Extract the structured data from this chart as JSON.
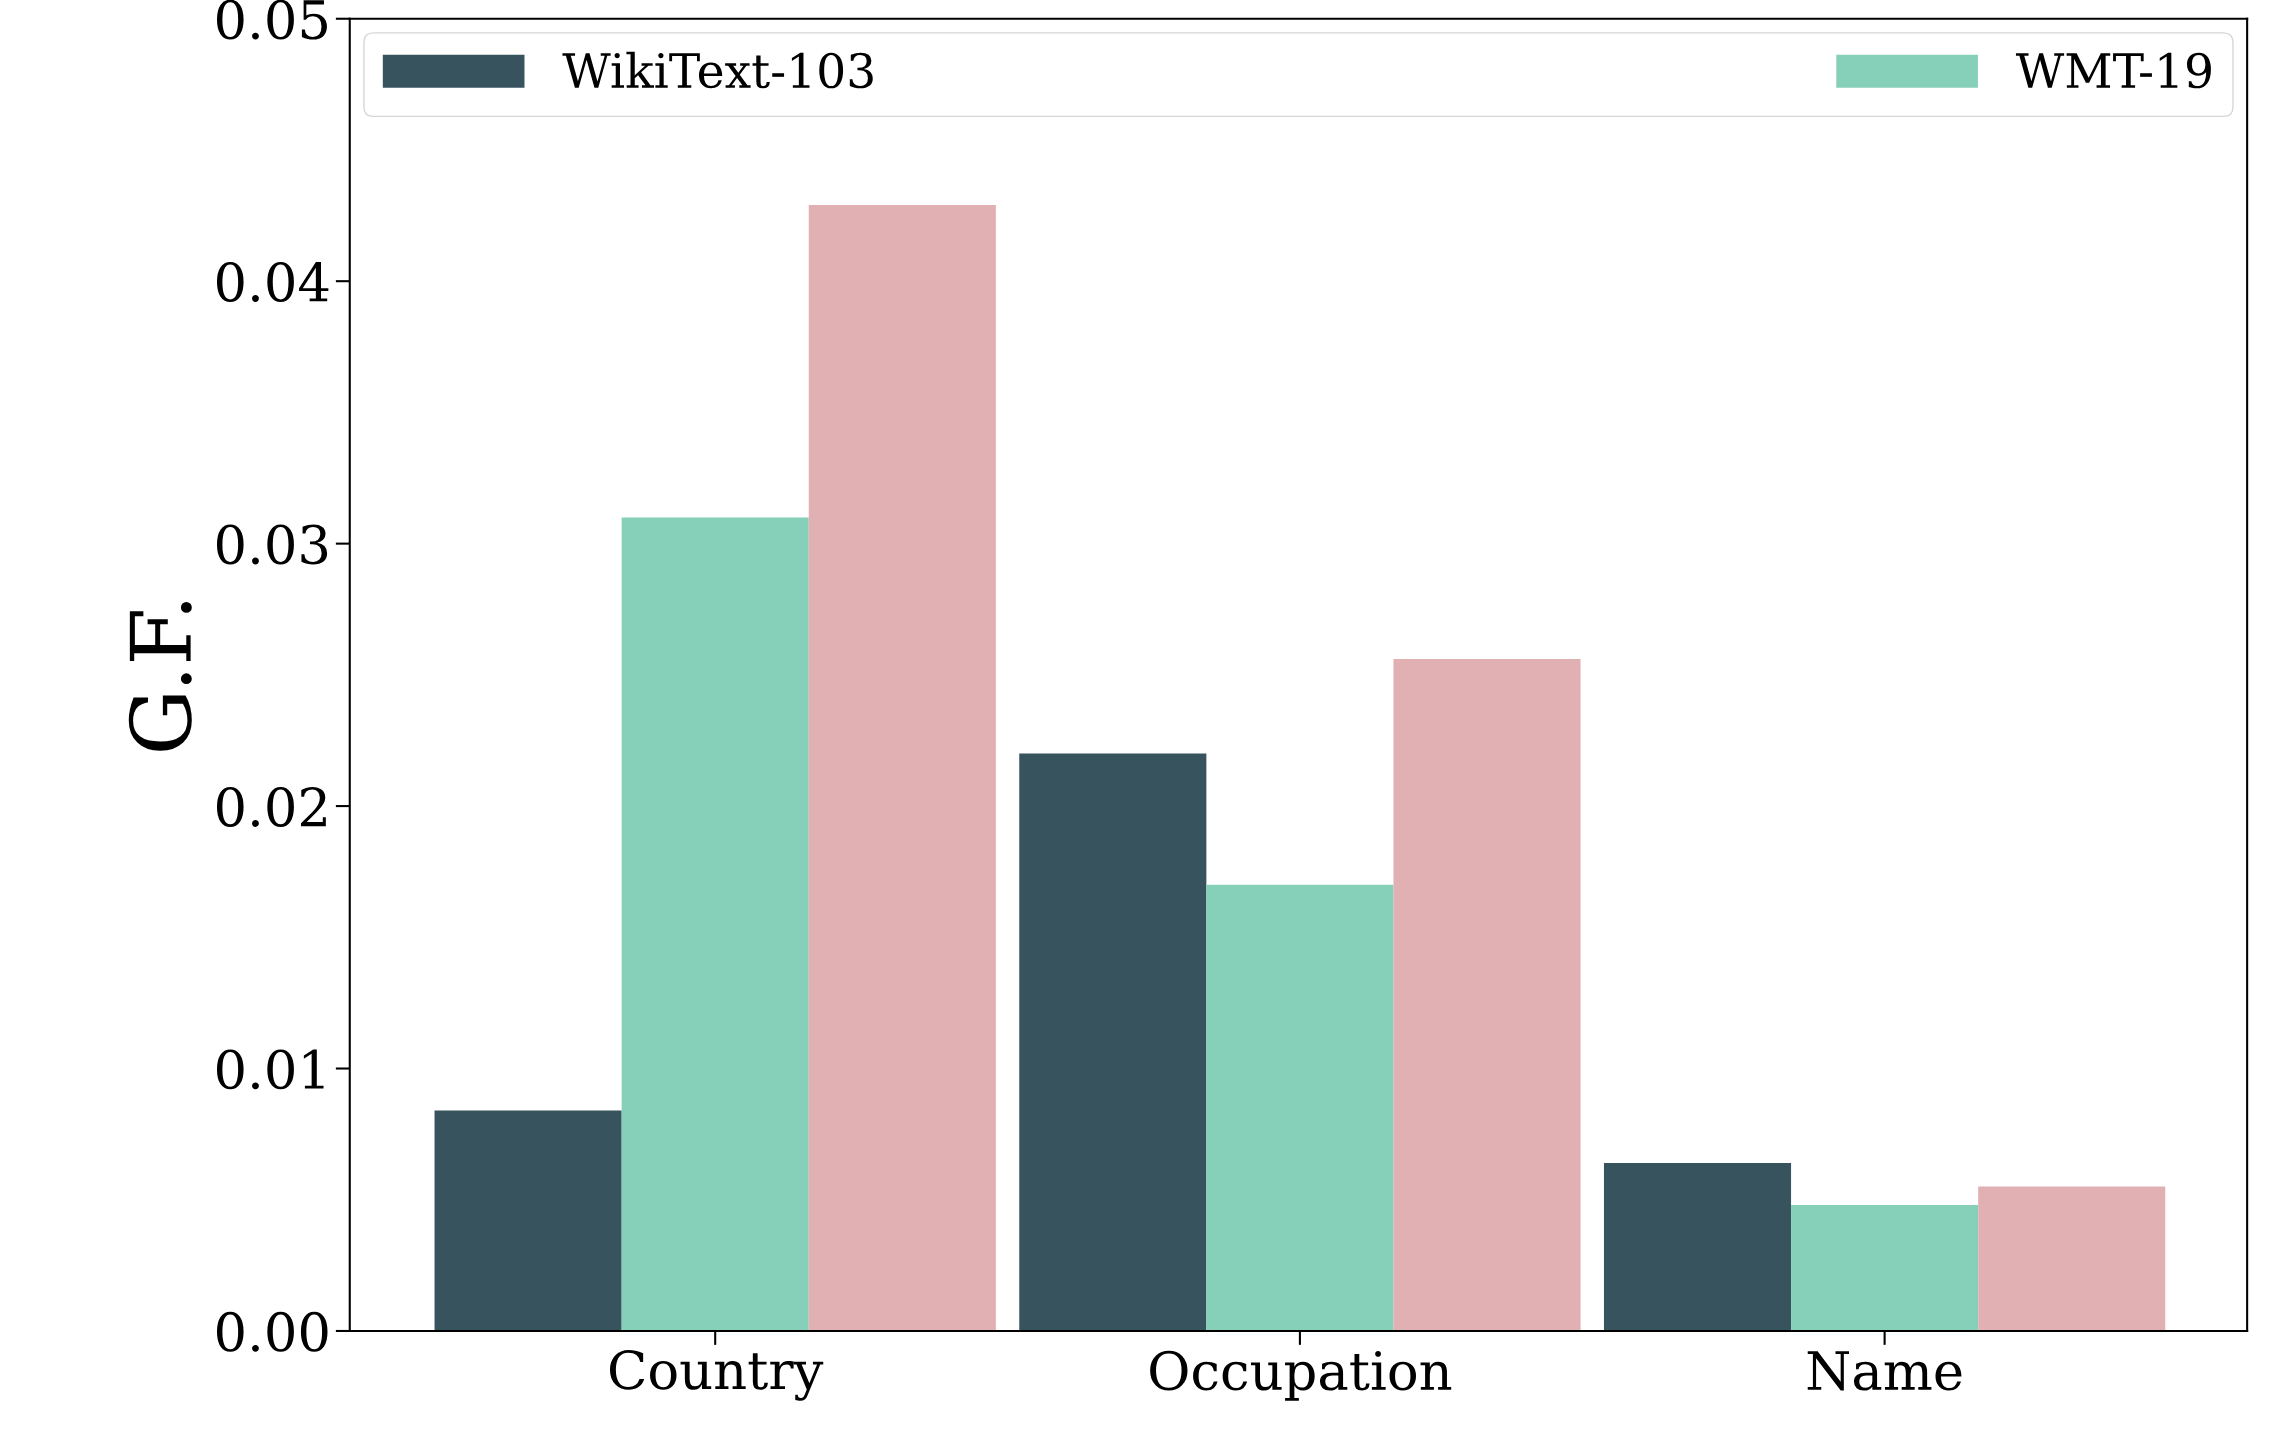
{
  "chart_data": {
    "type": "bar",
    "ylabel": "G.F.",
    "categories": [
      "Country",
      "Occupation",
      "Name"
    ],
    "series": [
      {
        "name": "WikiText-103",
        "color": "#37535e",
        "values": [
          0.0084,
          0.022,
          0.0064
        ]
      },
      {
        "name": "WMT-19",
        "color": "#86cfb9",
        "values": [
          0.031,
          0.017,
          0.0048
        ]
      },
      {
        "color": "#e1b0b3",
        "values": [
          0.0429,
          0.0256,
          0.0055
        ]
      }
    ],
    "ylim": [
      0,
      0.05
    ],
    "yticks": [
      {
        "value": 0,
        "label": "0.00"
      },
      {
        "value": 0.01,
        "label": "0.01"
      },
      {
        "value": 0.02,
        "label": "0.02"
      },
      {
        "value": 0.03,
        "label": "0.03"
      },
      {
        "value": 0.04,
        "label": "0.04"
      },
      {
        "value": 0.05,
        "label": "0.05"
      }
    ],
    "grid": false,
    "legend": "top"
  }
}
